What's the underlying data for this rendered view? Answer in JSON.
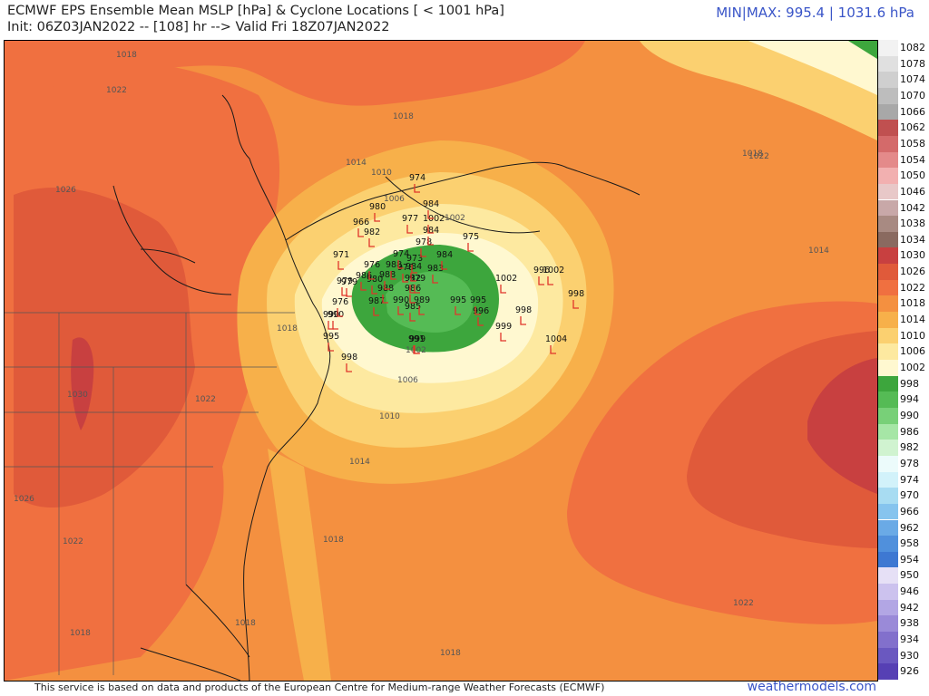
{
  "header": {
    "title": "ECMWF EPS Ensemble Mean MSLP [hPa] & Cyclone Locations [ < 1001 hPa]",
    "init_line": "Init: 06Z03JAN2022 -- [108] hr --> Valid Fri 18Z07JAN2022",
    "minmax": "MIN|MAX: 995.4 | 1031.6 hPa"
  },
  "footer": {
    "credit": "This service is based on data and products of the European Centre for Medium-range Weather Forecasts (ECMWF)",
    "brand": "weathermodels.com"
  },
  "legend": {
    "labels": [
      "1082",
      "1078",
      "1074",
      "1070",
      "1066",
      "1062",
      "1058",
      "1054",
      "1050",
      "1046",
      "1042",
      "1038",
      "1034",
      "1030",
      "1026",
      "1022",
      "1018",
      "1014",
      "1010",
      "1006",
      "1002",
      "998",
      "994",
      "990",
      "986",
      "982",
      "978",
      "974",
      "970",
      "966",
      "962",
      "958",
      "954",
      "950",
      "946",
      "942",
      "938",
      "934",
      "930",
      "926"
    ],
    "colors": [
      "#f2f2f2",
      "#e0e0e0",
      "#cfcfcf",
      "#bdbdbd",
      "#a8a8a8",
      "#c05050",
      "#d46a6a",
      "#e48a8a",
      "#f2b0b0",
      "#e8c8c8",
      "#c8a8a8",
      "#a88a82",
      "#8a6a60",
      "#c84040",
      "#e05a3a",
      "#f07040",
      "#f49040",
      "#f7b04a",
      "#fbd070",
      "#fde9a0",
      "#fff8d0",
      "#3da63d",
      "#55bb55",
      "#78d078",
      "#a6e6a6",
      "#d0f3d0",
      "#ecfbfb",
      "#d2f2fa",
      "#a8dcf2",
      "#86c4ee",
      "#6aaae6",
      "#5090dc",
      "#3e78d2",
      "#e6e0f6",
      "#ccc2ee",
      "#b2a6e4",
      "#9a8ad8",
      "#8270cc",
      "#6a58c0",
      "#5640b4"
    ]
  },
  "map": {
    "isobar_labels": [
      "1018",
      "1022",
      "1018",
      "1014",
      "1010",
      "1006",
      "1002",
      "1026",
      "1030",
      "1022",
      "1026",
      "1022",
      "1018",
      "1018",
      "1022",
      "1018",
      "1018",
      "1014",
      "1010",
      "1006",
      "1002",
      "1014",
      "1018",
      "1022",
      "1018"
    ],
    "members": [
      "974",
      "984",
      "980",
      "977",
      "966",
      "982",
      "1002",
      "984",
      "975",
      "971",
      "976",
      "988",
      "978",
      "988",
      "980",
      "979",
      "986",
      "974",
      "973",
      "978",
      "984",
      "983",
      "984",
      "979",
      "979",
      "987",
      "982",
      "976",
      "988",
      "986",
      "989",
      "990",
      "985",
      "990",
      "995",
      "995",
      "996",
      "1002",
      "996",
      "1002",
      "998",
      "998",
      "999",
      "1004",
      "990",
      "995",
      "998",
      "999",
      "991"
    ]
  }
}
